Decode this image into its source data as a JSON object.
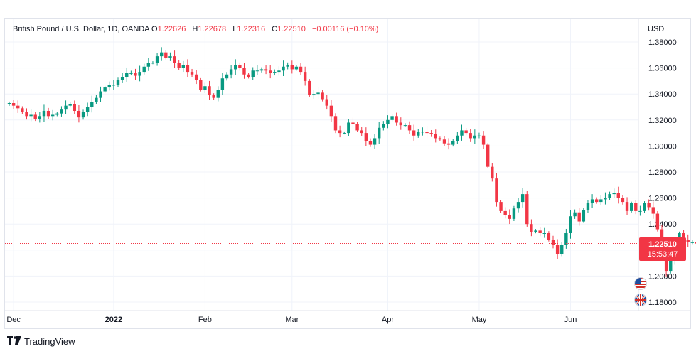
{
  "legend": {
    "instrument": "British Pound / U.S. Dollar, 1D, OANDA",
    "o_label": "O",
    "o": "1.22626",
    "h_label": "H",
    "h": "1.22678",
    "l_label": "L",
    "l": "1.22316",
    "c_label": "C",
    "c": "1.22510",
    "change": "−0.00116 (−0.10%)"
  },
  "currency": "USD",
  "last_price": {
    "price": "1.22510",
    "countdown": "15:53:47"
  },
  "brand": {
    "name": "TradingView",
    "logo": "tradingview-logo-icon"
  },
  "colors": {
    "up": "#089981",
    "down": "#f23645",
    "grid": "#f0f3fa",
    "axis_text": "#131722"
  },
  "chart_data": {
    "type": "candlestick",
    "ylim": [
      1.175,
      1.385
    ],
    "y_ticks": [
      "1.38000",
      "1.36000",
      "1.34000",
      "1.32000",
      "1.30000",
      "1.28000",
      "1.26000",
      "1.24000",
      "1.22000",
      "1.20000",
      "1.18000"
    ],
    "x_ticks": [
      {
        "label": "Dec",
        "date": "2021-12-01"
      },
      {
        "label": "2022",
        "date": "2022-01-03"
      },
      {
        "label": "Feb",
        "date": "2022-02-01"
      },
      {
        "label": "Mar",
        "date": "2022-03-01"
      },
      {
        "label": "Apr",
        "date": "2022-04-01"
      },
      {
        "label": "May",
        "date": "2022-05-02"
      },
      {
        "label": "Jun",
        "date": "2022-06-01"
      }
    ],
    "last_value": 1.2251,
    "close": [
      1.333,
      1.331,
      1.329,
      1.326,
      1.323,
      1.324,
      1.321,
      1.323,
      1.327,
      1.323,
      1.324,
      1.325,
      1.328,
      1.331,
      1.332,
      1.327,
      1.322,
      1.326,
      1.33,
      1.334,
      1.337,
      1.342,
      1.345,
      1.347,
      1.347,
      1.351,
      1.353,
      1.356,
      1.356,
      1.354,
      1.357,
      1.361,
      1.364,
      1.364,
      1.369,
      1.372,
      1.368,
      1.369,
      1.364,
      1.36,
      1.362,
      1.357,
      1.355,
      1.351,
      1.343,
      1.346,
      1.339,
      1.337,
      1.343,
      1.352,
      1.355,
      1.359,
      1.362,
      1.36,
      1.355,
      1.353,
      1.358,
      1.358,
      1.359,
      1.358,
      1.356,
      1.357,
      1.358,
      1.361,
      1.362,
      1.359,
      1.361,
      1.357,
      1.35,
      1.339,
      1.34,
      1.341,
      1.336,
      1.331,
      1.323,
      1.312,
      1.31,
      1.31,
      1.318,
      1.317,
      1.312,
      1.31,
      1.304,
      1.301,
      1.306,
      1.314,
      1.317,
      1.32,
      1.323,
      1.318,
      1.316,
      1.316,
      1.312,
      1.308,
      1.311,
      1.311,
      1.31,
      1.309,
      1.306,
      1.305,
      1.302,
      1.301,
      1.304,
      1.308,
      1.312,
      1.31,
      1.306,
      1.308,
      1.308,
      1.301,
      1.284,
      1.275,
      1.257,
      1.25,
      1.247,
      1.244,
      1.252,
      1.257,
      1.263,
      1.24,
      1.234,
      1.235,
      1.233,
      1.233,
      1.228,
      1.224,
      1.217,
      1.224,
      1.233,
      1.246,
      1.249,
      1.242,
      1.251,
      1.256,
      1.259,
      1.257,
      1.259,
      1.26,
      1.263,
      1.264,
      1.26,
      1.257,
      1.25,
      1.256,
      1.25,
      1.25,
      1.256,
      1.253,
      1.248,
      1.236,
      1.215,
      1.204,
      1.212,
      1.223,
      1.233,
      1.228,
      1.226,
      1.226,
      1.225
    ]
  }
}
